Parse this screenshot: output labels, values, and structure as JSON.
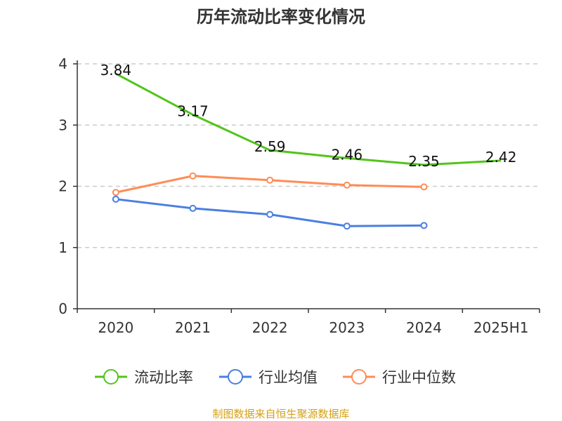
{
  "chart_data": {
    "type": "line",
    "title": "历年流动比率变化情况",
    "categories": [
      "2020",
      "2021",
      "2022",
      "2023",
      "2024",
      "2025H1"
    ],
    "ylim": [
      0,
      4
    ],
    "yticks": [
      0,
      1,
      2,
      3,
      4
    ],
    "grid": true,
    "legend_position": "bottom",
    "series": [
      {
        "name": "流动比率",
        "color": "#52c41a",
        "values": [
          3.84,
          3.17,
          2.59,
          2.46,
          2.35,
          2.42
        ],
        "labels": true,
        "markers": false
      },
      {
        "name": "行业均值",
        "color": "#4a7fe0",
        "values": [
          1.79,
          1.64,
          1.54,
          1.35,
          1.36,
          null
        ],
        "labels": false,
        "markers": true
      },
      {
        "name": "行业中位数",
        "color": "#ff8c55",
        "values": [
          1.9,
          2.17,
          2.1,
          2.02,
          1.99,
          null
        ],
        "labels": false,
        "markers": true
      }
    ]
  },
  "source": "制图数据来自恒生聚源数据库"
}
